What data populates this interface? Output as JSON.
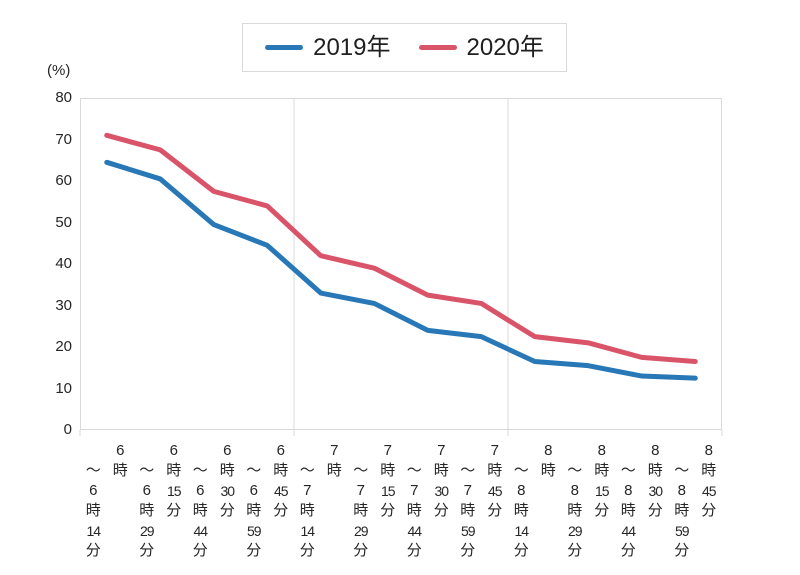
{
  "unit_label": "(%)",
  "legend": {
    "items": [
      {
        "label": "2019年",
        "color": "#2878B8"
      },
      {
        "label": "2020年",
        "color": "#D95468"
      }
    ]
  },
  "colors": {
    "axis": "#d9d9d9",
    "text": "#262626",
    "series_2019": "#2878B8",
    "series_2020": "#D95468"
  },
  "chart_data": {
    "type": "line",
    "title": "",
    "xlabel": "",
    "ylabel": "(%)",
    "categories": [
      "6時〜6時14分",
      "6時15分〜6時29分",
      "6時30分〜6時44分",
      "6時45分〜6時59分",
      "7時〜7時14分",
      "7時15分〜7時29分",
      "7時30分〜7時44分",
      "7時45分〜7時59分",
      "8時〜8時14分",
      "8時15分〜8時29分",
      "8時30分〜8時44分",
      "8時45分〜8時59分"
    ],
    "series": [
      {
        "name": "2019年",
        "color": "#2878B8",
        "values": [
          64.5,
          60.5,
          49.5,
          44.5,
          33,
          30.5,
          24,
          22.5,
          16.5,
          15.5,
          13,
          12.5
        ]
      },
      {
        "name": "2020年",
        "color": "#D95468",
        "values": [
          71,
          67.5,
          57.5,
          54,
          42,
          39,
          32.5,
          30.5,
          22.5,
          21,
          17.5,
          16.5
        ]
      }
    ],
    "ylim": [
      0,
      80
    ],
    "yticks": [
      0,
      10,
      20,
      30,
      40,
      50,
      60,
      70,
      80
    ],
    "grid": "vertical-boundaries-only",
    "vertical_gridline_boundaries": [
      4,
      8
    ],
    "legend_position": "top-center"
  }
}
